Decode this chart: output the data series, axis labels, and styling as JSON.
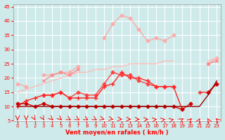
{
  "x": [
    0,
    1,
    2,
    3,
    4,
    5,
    6,
    7,
    8,
    9,
    10,
    11,
    12,
    13,
    14,
    15,
    16,
    17,
    18,
    19,
    20,
    21,
    22,
    23
  ],
  "series": [
    {
      "name": "line1_light_pink_diamond",
      "color": "#ffaaaa",
      "linewidth": 1.0,
      "marker": "D",
      "markersize": 2.5,
      "y": [
        18,
        17,
        null,
        21,
        21,
        22,
        22,
        24,
        null,
        null,
        34,
        39,
        42,
        41,
        37,
        33,
        34,
        33,
        35,
        null,
        null,
        null,
        25,
        27
      ]
    },
    {
      "name": "line2_light_pink_trend",
      "color": "#ffbbbb",
      "linewidth": 1.0,
      "marker": null,
      "markersize": 0,
      "y": [
        15,
        16,
        17,
        18,
        19,
        20,
        21,
        22,
        22,
        23,
        23,
        24,
        24,
        25,
        25,
        25,
        25,
        26,
        26,
        null,
        null,
        null,
        26,
        27
      ]
    },
    {
      "name": "line3_pink_cross",
      "color": "#ff8888",
      "linewidth": 1.0,
      "marker": "x",
      "markersize": 3,
      "y": [
        null,
        null,
        null,
        19,
        21,
        22,
        21,
        23,
        null,
        null,
        null,
        null,
        null,
        null,
        null,
        null,
        null,
        null,
        null,
        null,
        null,
        null,
        25,
        26
      ]
    },
    {
      "name": "line4_medium_red",
      "color": "#ff4444",
      "linewidth": 1.0,
      "marker": "D",
      "markersize": 2.5,
      "y": [
        null,
        null,
        null,
        14,
        14,
        15,
        13,
        15,
        14,
        14,
        18,
        22,
        21,
        21,
        19,
        18,
        17,
        17,
        17,
        null,
        null,
        null,
        null,
        null
      ]
    },
    {
      "name": "line5_red_plus",
      "color": "#ff2222",
      "linewidth": 1.0,
      "marker": "+",
      "markersize": 4,
      "y": [
        10,
        12,
        13,
        14,
        14,
        15,
        13,
        13,
        13,
        13,
        17,
        18,
        22,
        20,
        20,
        19,
        17,
        17,
        17,
        9,
        null,
        15,
        15,
        18
      ]
    },
    {
      "name": "line6_dark_red",
      "color": "#cc0000",
      "linewidth": 1.0,
      "marker": "D",
      "markersize": 2.5,
      "y": [
        11,
        11,
        10,
        11,
        10,
        10,
        10,
        10,
        10,
        10,
        10,
        10,
        10,
        10,
        10,
        10,
        10,
        10,
        10,
        9,
        11,
        null,
        15,
        18
      ]
    },
    {
      "name": "line7_darkest_red",
      "color": "#990000",
      "linewidth": 1.0,
      "marker": null,
      "markersize": 0,
      "y": [
        10,
        10,
        10,
        10,
        10,
        10,
        10,
        10,
        10,
        10,
        10,
        10,
        10,
        10,
        10,
        10,
        10,
        10,
        10,
        10,
        10,
        10,
        14,
        19
      ]
    }
  ],
  "wind_arrows": {
    "y": 5.5,
    "color": "#ff0000",
    "angles_deg": [
      180,
      180,
      170,
      170,
      160,
      160,
      150,
      150,
      150,
      150,
      130,
      120,
      110,
      100,
      90,
      80,
      70,
      60,
      50,
      30,
      20,
      10,
      350,
      340
    ]
  },
  "xlabel": "Vent moyen/en rafales ( km/h )",
  "xlim": [
    -0.5,
    23.5
  ],
  "ylim": [
    5,
    46
  ],
  "yticks": [
    5,
    10,
    15,
    20,
    25,
    30,
    35,
    40,
    45
  ],
  "xticks": [
    0,
    1,
    2,
    3,
    4,
    5,
    6,
    7,
    8,
    9,
    10,
    11,
    12,
    13,
    14,
    15,
    16,
    17,
    18,
    19,
    20,
    21,
    22,
    23
  ],
  "bg_color": "#ceeaea",
  "grid_color": "#ffffff",
  "tick_color": "#ff0000",
  "label_color": "#ff0000",
  "figsize": [
    3.2,
    2.0
  ],
  "dpi": 100
}
